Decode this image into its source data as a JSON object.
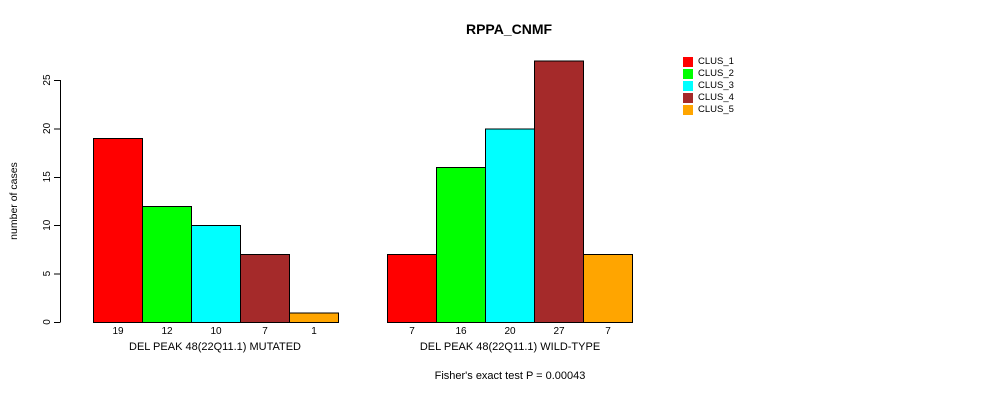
{
  "chart_data": {
    "type": "bar",
    "title": "RPPA_CNMF",
    "ylabel": "number of cases",
    "xlabel": "",
    "ylim": [
      0,
      25
    ],
    "yticks": [
      0,
      5,
      10,
      15,
      20,
      25
    ],
    "grid": false,
    "legend_position": "right",
    "background_color": "#FFFFFF",
    "bar_border_color": "#000000",
    "groups": [
      {
        "label": "DEL PEAK 48(22Q11.1) MUTATED",
        "values": [
          19,
          12,
          10,
          7,
          1
        ]
      },
      {
        "label": "DEL PEAK 48(22Q11.1) WILD-TYPE",
        "values": [
          7,
          16,
          20,
          27,
          7
        ]
      }
    ],
    "series": [
      {
        "name": "CLUS_1",
        "color": "#FF0000"
      },
      {
        "name": "CLUS_2",
        "color": "#00FF00"
      },
      {
        "name": "CLUS_3",
        "color": "#00FFFF"
      },
      {
        "name": "CLUS_4",
        "color": "#A52A2A"
      },
      {
        "name": "CLUS_5",
        "color": "#FFA500"
      }
    ],
    "annotation": "Fisher's exact test P = 0.00043"
  }
}
